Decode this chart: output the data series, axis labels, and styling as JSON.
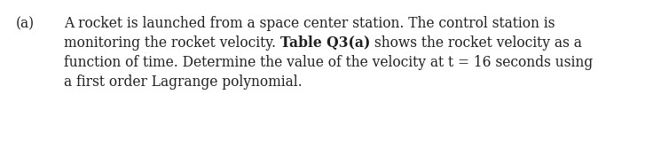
{
  "label_a": "(a)",
  "line1": "A rocket is launched from a space center station. The control station is",
  "line2_part1": "monitoring the rocket velocity. ",
  "line2_bold": "Table Q3(a)",
  "line2_part2": " shows the rocket velocity as a",
  "line3": "function of time. Determine the value of the velocity at t = 16 seconds using",
  "line4": "a first order Lagrange polynomial.",
  "background_color": "#ffffff",
  "text_color": "#231f20",
  "font_size": 11.2,
  "font_family": "DejaVu Serif"
}
